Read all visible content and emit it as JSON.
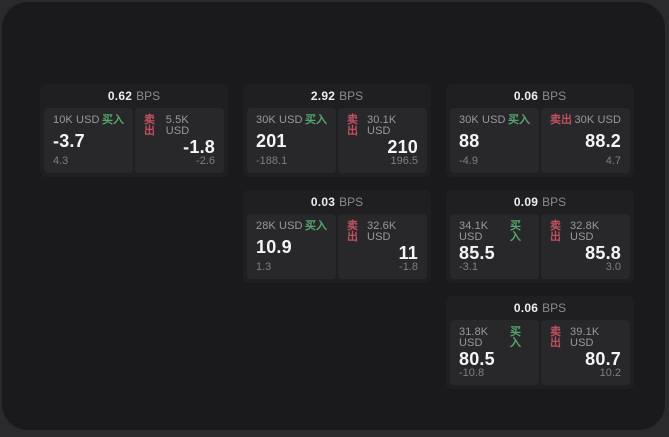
{
  "colors": {
    "page_bg": "#2a2a2d",
    "window_bg": "#1a1a1c",
    "card_bg": "#1f1f22",
    "panel_bg": "#28282b",
    "buy_green": "#56a56c",
    "sell_red": "#c0505f"
  },
  "cards": [
    {
      "bps_value": "0.62",
      "bps_unit": "BPS",
      "buy": {
        "amount": "10K USD",
        "side_label": "买入",
        "value": "-3.7",
        "sub_value": "4.3"
      },
      "sell": {
        "side_label": "卖出",
        "amount": "5.5K USD",
        "value": "-1.8",
        "sub_value": "-2.6"
      }
    },
    {
      "bps_value": "2.92",
      "bps_unit": "BPS",
      "buy": {
        "amount": "30K USD",
        "side_label": "买入",
        "value": "201",
        "sub_value": "-188.1"
      },
      "sell": {
        "side_label": "卖出",
        "amount": "30.1K USD",
        "value": "210",
        "sub_value": "196.5"
      }
    },
    {
      "bps_value": "0.06",
      "bps_unit": "BPS",
      "buy": {
        "amount": "30K USD",
        "side_label": "买入",
        "value": "88",
        "sub_value": "-4.9"
      },
      "sell": {
        "side_label": "卖出",
        "amount": "30K USD",
        "value": "88.2",
        "sub_value": "4.7"
      }
    },
    {
      "bps_value": "0.03",
      "bps_unit": "BPS",
      "buy": {
        "amount": "28K USD",
        "side_label": "买入",
        "value": "10.9",
        "sub_value": "1.3"
      },
      "sell": {
        "side_label": "卖出",
        "amount": "32.6K USD",
        "value": "11",
        "sub_value": "-1.8"
      }
    },
    {
      "bps_value": "0.09",
      "bps_unit": "BPS",
      "buy": {
        "amount": "34.1K USD",
        "side_label": "买入",
        "value": "85.5",
        "sub_value": "-3.1"
      },
      "sell": {
        "side_label": "卖出",
        "amount": "32.8K USD",
        "value": "85.8",
        "sub_value": "3.0"
      }
    },
    {
      "bps_value": "0.06",
      "bps_unit": "BPS",
      "buy": {
        "amount": "31.8K USD",
        "side_label": "买入",
        "value": "80.5",
        "sub_value": "-10.8"
      },
      "sell": {
        "side_label": "卖出",
        "amount": "39.1K USD",
        "value": "80.7",
        "sub_value": "10.2"
      }
    }
  ]
}
